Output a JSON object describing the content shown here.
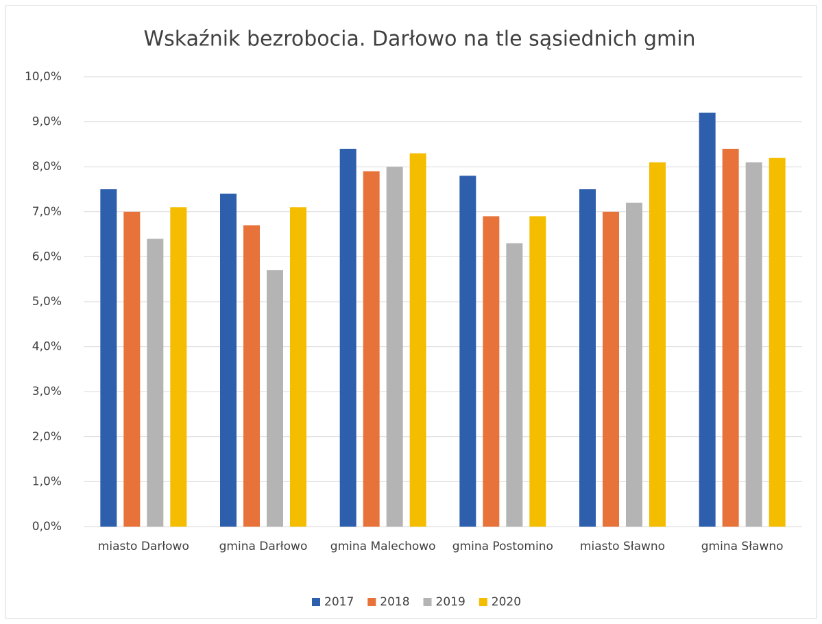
{
  "chart_data": {
    "type": "bar",
    "title": "Wskaźnik bezrobocia. Darłowo na tle sąsiednich gmin",
    "categories": [
      "miasto Darłowo",
      "gmina Darłowo",
      "gmina Malechowo",
      "gmina Postomino",
      "miasto Sławno",
      "gmina Sławno"
    ],
    "series": [
      {
        "name": "2017",
        "color": "#2e5fad",
        "values": [
          7.5,
          7.4,
          8.4,
          7.8,
          7.5,
          9.2
        ]
      },
      {
        "name": "2018",
        "color": "#e8733a",
        "values": [
          7.0,
          6.7,
          7.9,
          6.9,
          7.0,
          8.4
        ]
      },
      {
        "name": "2019",
        "color": "#b4b4b4",
        "values": [
          6.4,
          5.7,
          8.0,
          6.3,
          7.2,
          8.1
        ]
      },
      {
        "name": "2020",
        "color": "#f5bd00",
        "values": [
          7.1,
          7.1,
          8.3,
          6.9,
          8.1,
          8.2
        ]
      }
    ],
    "ylim": [
      0,
      10
    ],
    "yticks": [
      {
        "value": 0,
        "label": "0,0%"
      },
      {
        "value": 1,
        "label": "1,0%"
      },
      {
        "value": 2,
        "label": "2,0%"
      },
      {
        "value": 3,
        "label": "3,0%"
      },
      {
        "value": 4,
        "label": "4,0%"
      },
      {
        "value": 5,
        "label": "5,0%"
      },
      {
        "value": 6,
        "label": "6,0%"
      },
      {
        "value": 7,
        "label": "7,0%"
      },
      {
        "value": 8,
        "label": "8,0%"
      },
      {
        "value": 9,
        "label": "9,0%"
      },
      {
        "value": 10,
        "label": "10,0%"
      }
    ],
    "grid": true,
    "legend": "bottom"
  }
}
